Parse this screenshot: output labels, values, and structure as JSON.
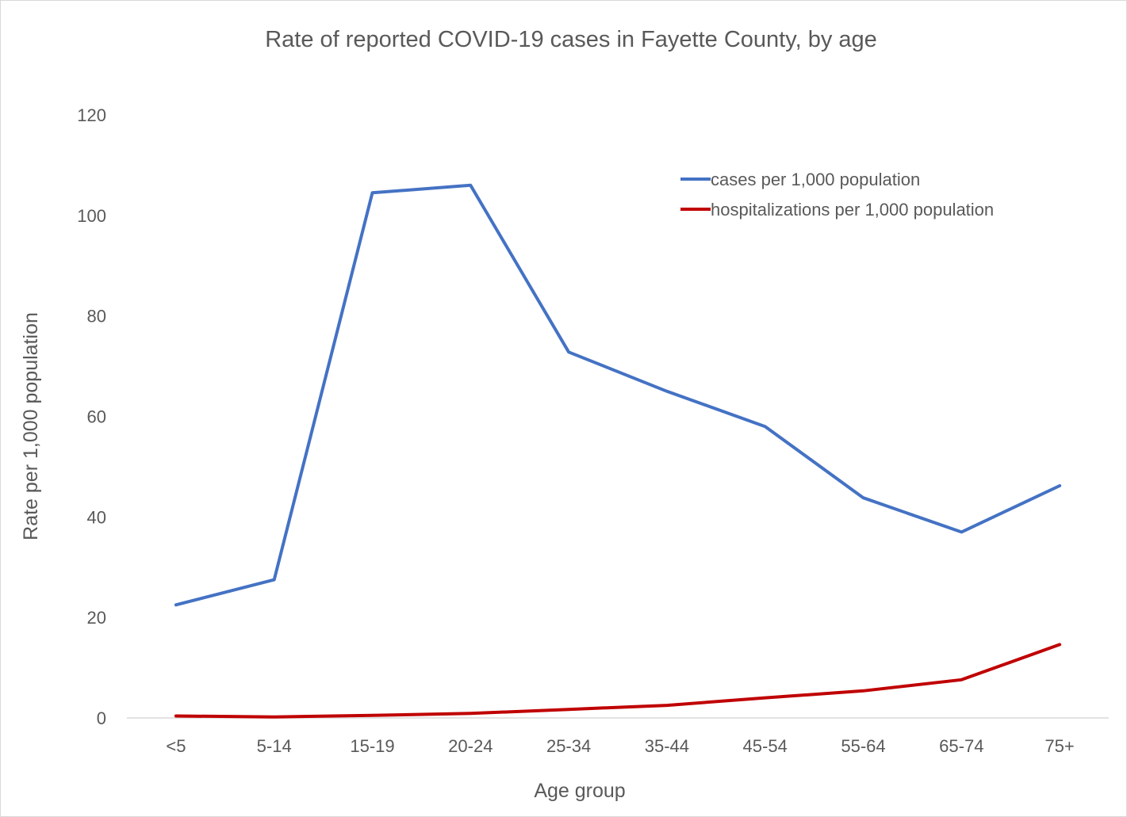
{
  "chart_data": {
    "type": "line",
    "title": "Rate of reported COVID-19 cases in Fayette County, by age",
    "xlabel": "Age group",
    "ylabel": "Rate per 1,000 population",
    "categories": [
      "<5",
      "5-14",
      "15-19",
      "20-24",
      "25-34",
      "35-44",
      "45-54",
      "55-64",
      "65-74",
      "75+"
    ],
    "ylim": [
      0,
      120
    ],
    "yticks": [
      0,
      20,
      40,
      60,
      80,
      100,
      120
    ],
    "grid": false,
    "legend_position": "top-right",
    "series": [
      {
        "name": "cases per 1,000 population",
        "color": "#4472C4",
        "values": [
          22.5,
          27.5,
          104.5,
          106.0,
          72.8,
          65.0,
          58.0,
          43.8,
          37.0,
          46.2
        ]
      },
      {
        "name": "hospitalizations per 1,000 population",
        "color": "#C00000",
        "values": [
          0.4,
          0.2,
          0.5,
          0.9,
          1.7,
          2.5,
          4.0,
          5.4,
          7.6,
          14.6
        ]
      }
    ]
  }
}
